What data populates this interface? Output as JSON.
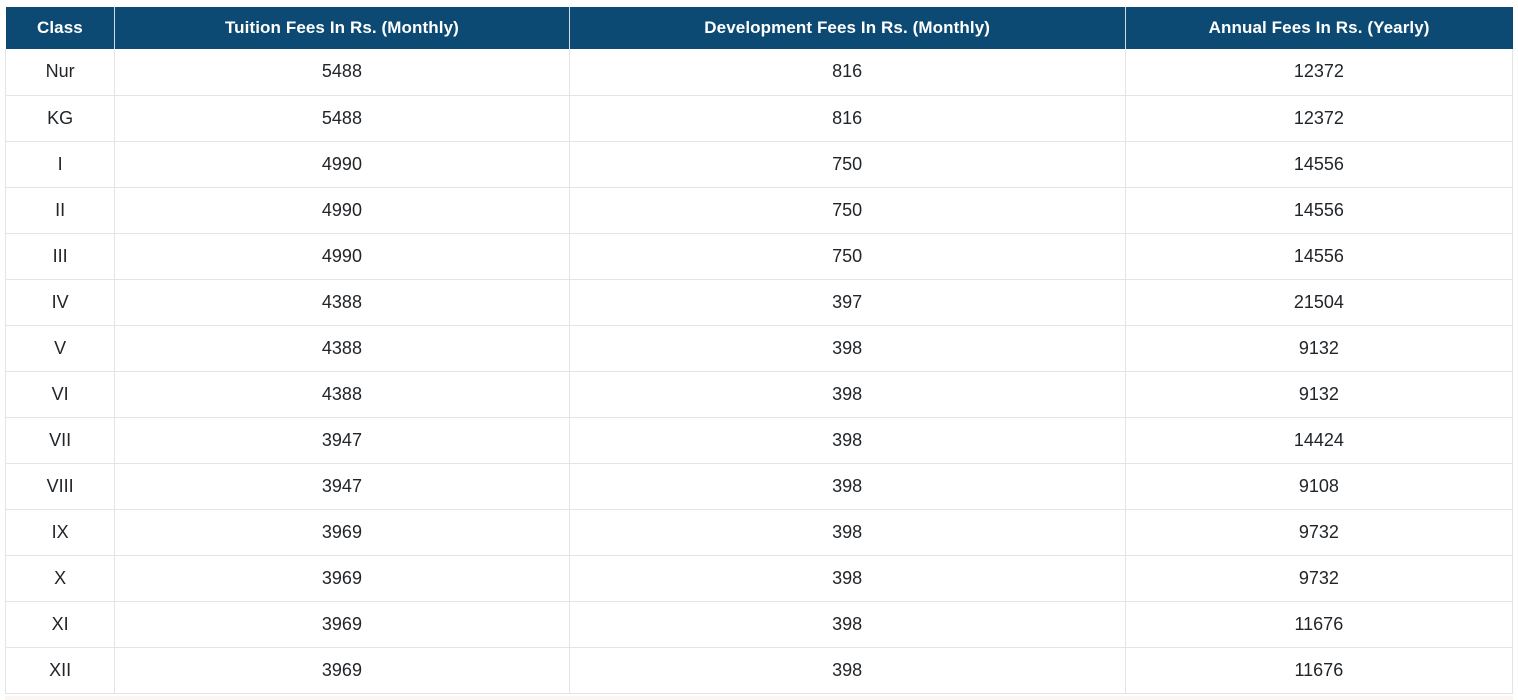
{
  "table": {
    "headers": [
      "Class",
      "Tuition Fees In Rs. (Monthly)",
      "Development Fees In Rs. (Monthly)",
      "Annual Fees In Rs. (Yearly)"
    ],
    "column_keys": [
      "class",
      "tuition",
      "development",
      "annual"
    ],
    "rows": [
      [
        "Nur",
        "5488",
        "816",
        "12372"
      ],
      [
        "KG",
        "5488",
        "816",
        "12372"
      ],
      [
        "I",
        "4990",
        "750",
        "14556"
      ],
      [
        "II",
        "4990",
        "750",
        "14556"
      ],
      [
        "III",
        "4990",
        "750",
        "14556"
      ],
      [
        "IV",
        "4388",
        "397",
        "21504"
      ],
      [
        "V",
        "4388",
        "398",
        "9132"
      ],
      [
        "VI",
        "4388",
        "398",
        "9132"
      ],
      [
        "VII",
        "3947",
        "398",
        "14424"
      ],
      [
        "VIII",
        "3947",
        "398",
        "9108"
      ],
      [
        "IX",
        "3969",
        "398",
        "9732"
      ],
      [
        "X",
        "3969",
        "398",
        "9732"
      ],
      [
        "XI",
        "3969",
        "398",
        "11676"
      ],
      [
        "XII",
        "3969",
        "398",
        "11676"
      ]
    ]
  },
  "colors": {
    "header_background": "#0c4a73",
    "header_text": "#ffffff",
    "body_text": "#212529",
    "border": "#e2e4e7",
    "row_background": "#ffffff",
    "bottom_strip": "#fbf5f4"
  },
  "chart_data": {
    "type": "table",
    "title": "",
    "columns": [
      "Class",
      "Tuition Fees In Rs. (Monthly)",
      "Development Fees In Rs. (Monthly)",
      "Annual Fees In Rs. (Yearly)"
    ],
    "rows": [
      [
        "Nur",
        5488,
        816,
        12372
      ],
      [
        "KG",
        5488,
        816,
        12372
      ],
      [
        "I",
        4990,
        750,
        14556
      ],
      [
        "II",
        4990,
        750,
        14556
      ],
      [
        "III",
        4990,
        750,
        14556
      ],
      [
        "IV",
        4388,
        397,
        21504
      ],
      [
        "V",
        4388,
        398,
        9132
      ],
      [
        "VI",
        4388,
        398,
        9132
      ],
      [
        "VII",
        3947,
        398,
        14424
      ],
      [
        "VIII",
        3947,
        398,
        9108
      ],
      [
        "IX",
        3969,
        398,
        9732
      ],
      [
        "X",
        3969,
        398,
        9732
      ],
      [
        "XI",
        3969,
        398,
        11676
      ],
      [
        "XII",
        3969,
        398,
        11676
      ]
    ]
  }
}
